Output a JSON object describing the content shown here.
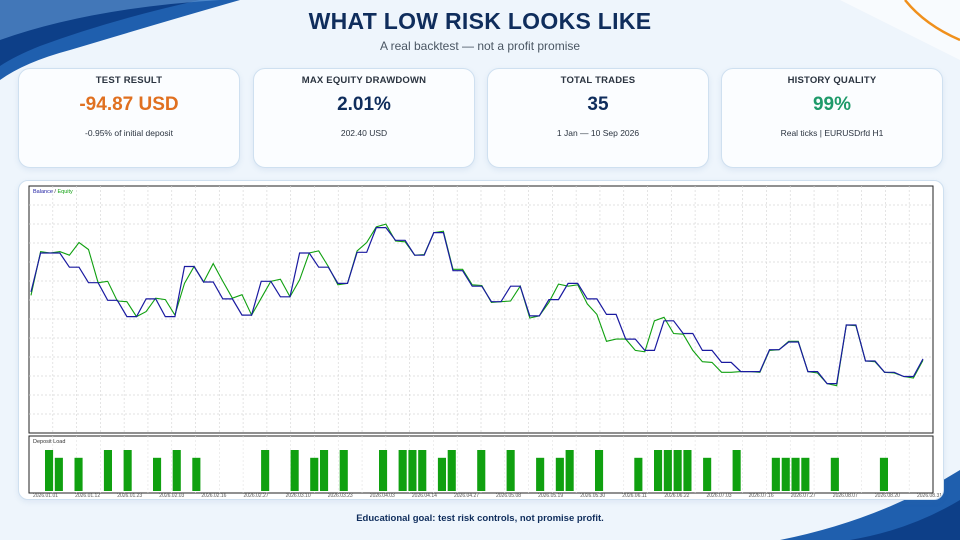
{
  "header": {
    "title": "WHAT LOW RISK LOOKS LIKE",
    "subtitle": "A real backtest — not a profit promise"
  },
  "cards": [
    {
      "label": "TEST RESULT",
      "value": "-94.87 USD",
      "sub": "-0.95% of initial deposit",
      "color": "#e07020"
    },
    {
      "label": "MAX EQUITY DRAWDOWN",
      "value": "2.01%",
      "sub": "202.40 USD",
      "color": "#0f2d5c"
    },
    {
      "label": "TOTAL TRADES",
      "value": "35",
      "sub": "1 Jan — 10 Sep 2026",
      "color": "#0f2d5c"
    },
    {
      "label": "HISTORY QUALITY",
      "value": "99%",
      "sub": "Real ticks | EURUSDrfd H1",
      "color": "#1e9a6a"
    }
  ],
  "chart_data": [
    {
      "type": "line",
      "legend": [
        "Balance",
        "Equity"
      ],
      "colors": {
        "balance": "#1a1aa0",
        "equity": "#10a010"
      },
      "series": [
        {
          "name": "Balance",
          "values": [
            5.0,
            10.5,
            10.5,
            10.5,
            8.5,
            8.5,
            6.3,
            6.3,
            3.8,
            3.8,
            1.5,
            1.5,
            4.0,
            4.0,
            1.5,
            1.5,
            8.6,
            8.6,
            6.4,
            6.4,
            4.0,
            4.0,
            1.7,
            1.7,
            6.5,
            6.5,
            4.3,
            4.3,
            10.5,
            10.5,
            8.5,
            8.5,
            6.2,
            6.2,
            10.6,
            10.6,
            14.1,
            14.1,
            12.3,
            12.3,
            10.2,
            10.2,
            13.4,
            13.4,
            8.0,
            8.0,
            5.8,
            5.8,
            3.6,
            3.6,
            5.8,
            5.8,
            1.6,
            1.6,
            3.9,
            3.9,
            6.2,
            6.2,
            4.0,
            4.0,
            1.8,
            1.8,
            -1.7,
            -1.7,
            -3.3,
            -3.3,
            0.9,
            0.9,
            -0.9,
            -0.9,
            -3.3,
            -3.3,
            -5.0,
            -5.0,
            -6.3,
            -6.3,
            -6.3,
            -3.2,
            -3.2,
            -2.1,
            -2.1,
            -6.3,
            -6.3,
            -8.0,
            -8.0,
            0.3,
            0.3,
            -4.8,
            -4.8,
            -6.4,
            -6.4,
            -7.0,
            -7.0,
            -4.5
          ]
        },
        {
          "name": "Equity",
          "values": [
            4.5,
            10.7,
            10.5,
            10.7,
            10.2,
            12.0,
            11.0,
            6.3,
            6.5,
            3.7,
            3.6,
            1.5,
            2.2,
            4.1,
            3.9,
            1.7,
            6.2,
            8.6,
            6.4,
            9.0,
            6.5,
            4.1,
            4.6,
            1.7,
            4.1,
            6.5,
            6.8,
            4.3,
            6.7,
            10.5,
            10.8,
            8.6,
            6.0,
            6.2,
            10.8,
            12.0,
            14.2,
            14.6,
            12.2,
            12.1,
            10.2,
            10.3,
            13.4,
            13.6,
            8.2,
            8.2,
            6.0,
            5.9,
            3.5,
            3.6,
            3.7,
            5.8,
            1.3,
            1.6,
            3.5,
            6.1,
            5.8,
            6.0,
            3.3,
            1.8,
            -2.0,
            -1.7,
            -1.7,
            -3.3,
            -3.5,
            0.9,
            1.4,
            -0.9,
            -1.0,
            -3.3,
            -4.9,
            -5.0,
            -6.4,
            -6.4,
            -6.3,
            -6.3,
            -6.4,
            -3.3,
            -3.2,
            -2.0,
            -2.0,
            -6.3,
            -6.5,
            -8.0,
            -8.3,
            0.3,
            0.2,
            -4.8,
            -4.9,
            -6.4,
            -6.5,
            -7.0,
            -7.2,
            -4.7
          ]
        }
      ],
      "ylim": [
        -15,
        20
      ]
    },
    {
      "type": "bar",
      "label": "Deposit Load",
      "color": "#10a010",
      "values": [
        1,
        0.81,
        0,
        0.81,
        0,
        0,
        1,
        0,
        1,
        0,
        0,
        0.81,
        0,
        1,
        0,
        0.81,
        0,
        0,
        0,
        0,
        0,
        0,
        1,
        0,
        0,
        1,
        0,
        0.81,
        1,
        0,
        1,
        0,
        0,
        0,
        1,
        0,
        1,
        1,
        1,
        0,
        0.81,
        1,
        0,
        0,
        1,
        0,
        0,
        1,
        0,
        0,
        0.81,
        0,
        0.81,
        1,
        0,
        0,
        1,
        0,
        0,
        0,
        0.81,
        0,
        1,
        1,
        1,
        1,
        0,
        0.81,
        0,
        0,
        1,
        0,
        0,
        0,
        0.81,
        0.81,
        0.81,
        0.81,
        0,
        0,
        0.81,
        0,
        0,
        0,
        0,
        0.81,
        0,
        0,
        0,
        0
      ],
      "xlabels": [
        "2026.01.01",
        "2026.01.12",
        "2026.01.23",
        "2026.02.03",
        "2026.02.16",
        "2026.02.27",
        "2026.03.10",
        "2026.03.23",
        "2026.04.03",
        "2026.04.14",
        "2026.04.27",
        "2026.05.08",
        "2026.05.19",
        "2026.05.30",
        "2026.06.11",
        "2026.06.22",
        "2026.07.03",
        "2026.07.16",
        "2026.07.27",
        "2026.08.07",
        "2026.08.20",
        "2026.08.31"
      ]
    }
  ],
  "footer": "Educational goal: test risk controls, not promise profit."
}
